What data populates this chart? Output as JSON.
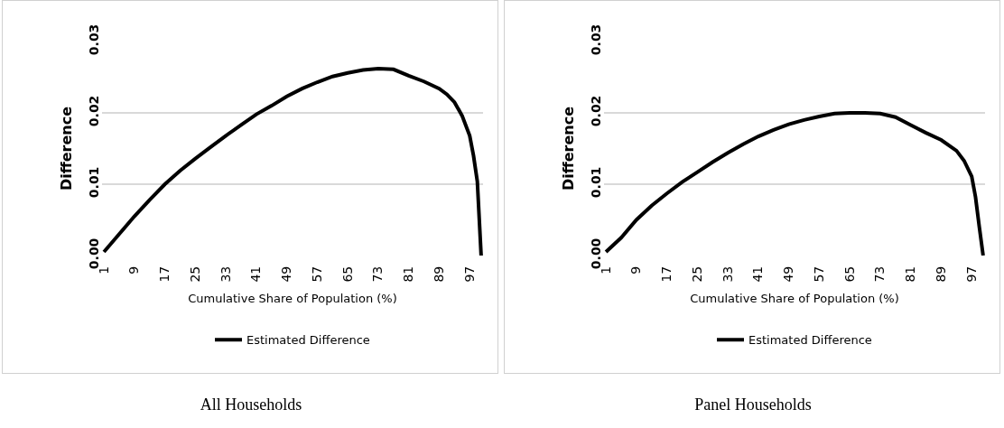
{
  "chart_data": [
    {
      "type": "line",
      "xlabel": "Cumulative Share of Population (%)",
      "ylabel": "Difference",
      "annotations": [
        "All Households"
      ],
      "x": [
        1,
        5,
        9,
        13,
        17,
        21,
        25,
        29,
        33,
        37,
        41,
        45,
        49,
        53,
        57,
        61,
        65,
        69,
        73,
        77,
        81,
        85,
        89,
        91,
        93,
        95,
        97,
        98,
        99,
        100
      ],
      "series": [
        {
          "name": "Estimated Difference",
          "color": "#000000",
          "values": [
            0.0005,
            0.003,
            0.0055,
            0.0078,
            0.01,
            0.0119,
            0.0136,
            0.0152,
            0.0168,
            0.0183,
            0.0198,
            0.021,
            0.0223,
            0.0234,
            0.0243,
            0.0251,
            0.0256,
            0.026,
            0.0262,
            0.0261,
            0.0252,
            0.0244,
            0.0234,
            0.0226,
            0.0215,
            0.0196,
            0.0168,
            0.014,
            0.0104,
            0
          ]
        }
      ],
      "xlim": [
        0.5,
        100.5
      ],
      "xticks": [
        1,
        9,
        17,
        25,
        33,
        41,
        49,
        57,
        65,
        73,
        81,
        89,
        97
      ],
      "ylim": [
        0,
        0.03
      ],
      "yticks": [
        {
          "value": 0,
          "label": "0.00"
        },
        {
          "value": 0.01,
          "label": "0.01"
        },
        {
          "value": 0.02,
          "label": "0.02"
        },
        {
          "value": 0.03,
          "label": "0.03"
        }
      ],
      "grid": "y",
      "legend": "bottom",
      "line_style": "solid",
      "marker": "none"
    },
    {
      "type": "line",
      "xlabel": "Cumulative Share of Population (%)",
      "ylabel": "Difference",
      "annotations": [
        "Panel Households"
      ],
      "x": [
        1,
        5,
        9,
        13,
        17,
        21,
        25,
        29,
        33,
        37,
        41,
        45,
        49,
        53,
        57,
        61,
        65,
        69,
        73,
        77,
        81,
        85,
        89,
        93,
        95,
        97,
        98,
        99,
        100
      ],
      "series": [
        {
          "name": "Estimated Difference",
          "color": "#000000",
          "values": [
            0.0005,
            0.0025,
            0.005,
            0.007,
            0.0087,
            0.0103,
            0.0117,
            0.0131,
            0.0144,
            0.0156,
            0.0167,
            0.0176,
            0.0184,
            0.019,
            0.0195,
            0.0199,
            0.02,
            0.02,
            0.0199,
            0.0194,
            0.0183,
            0.0172,
            0.0162,
            0.0147,
            0.0133,
            0.0111,
            0.0082,
            0.004,
            0
          ]
        }
      ],
      "xlim": [
        0.5,
        100.5
      ],
      "xticks": [
        1,
        9,
        17,
        25,
        33,
        41,
        49,
        57,
        65,
        73,
        81,
        89,
        97
      ],
      "ylim": [
        0,
        0.03
      ],
      "yticks": [
        {
          "value": 0,
          "label": "0.00"
        },
        {
          "value": 0.01,
          "label": "0.01"
        },
        {
          "value": 0.02,
          "label": "0.02"
        },
        {
          "value": 0.03,
          "label": "0.03"
        }
      ],
      "grid": "y",
      "legend": "bottom",
      "line_style": "solid",
      "marker": "none"
    }
  ]
}
